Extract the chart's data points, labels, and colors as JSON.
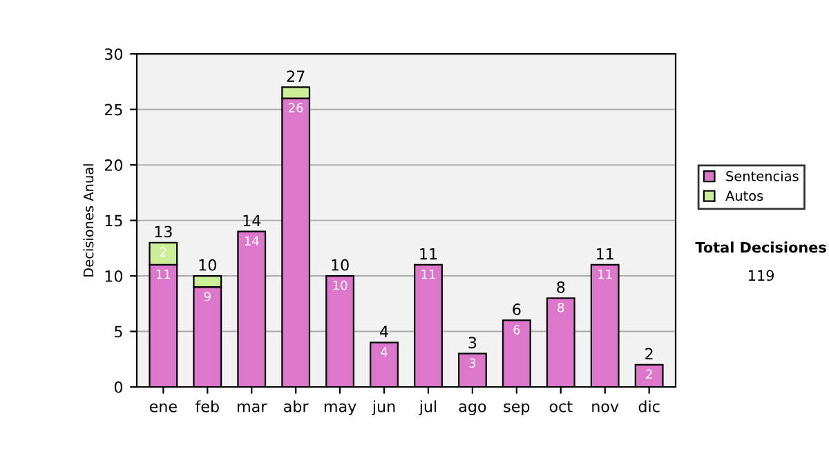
{
  "chart_data": {
    "type": "bar",
    "stacked": true,
    "ylabel": "Decisiones Anual",
    "categories": [
      "ene",
      "feb",
      "mar",
      "abr",
      "may",
      "jun",
      "jul",
      "ago",
      "sep",
      "oct",
      "nov",
      "dic"
    ],
    "series": [
      {
        "name": "Sentencias",
        "color": "#dd77cc",
        "values": [
          11,
          9,
          14,
          26,
          10,
          4,
          11,
          3,
          6,
          8,
          11,
          2
        ],
        "value_labels": [
          "11",
          "9",
          "14",
          "26",
          "10",
          "4",
          "11",
          "3",
          "6",
          "8",
          "11",
          "2"
        ]
      },
      {
        "name": "Autos",
        "color": "#ccee99",
        "values": [
          2,
          1,
          null,
          1,
          null,
          null,
          null,
          null,
          null,
          null,
          null,
          null
        ],
        "value_labels": [
          "2",
          null,
          null,
          null,
          null,
          null,
          null,
          null,
          null,
          null,
          null,
          null
        ]
      }
    ],
    "totals": [
      "13",
      "10",
      "14",
      "27",
      "10",
      "4",
      "11",
      "3",
      "6",
      "8",
      "11",
      "2"
    ],
    "ylim": [
      0,
      30
    ],
    "yticks": [
      0,
      5,
      10,
      15,
      20,
      25,
      30
    ],
    "grid": "y",
    "legend": "right",
    "annotations": [
      "Total Decisiones",
      "119"
    ]
  }
}
